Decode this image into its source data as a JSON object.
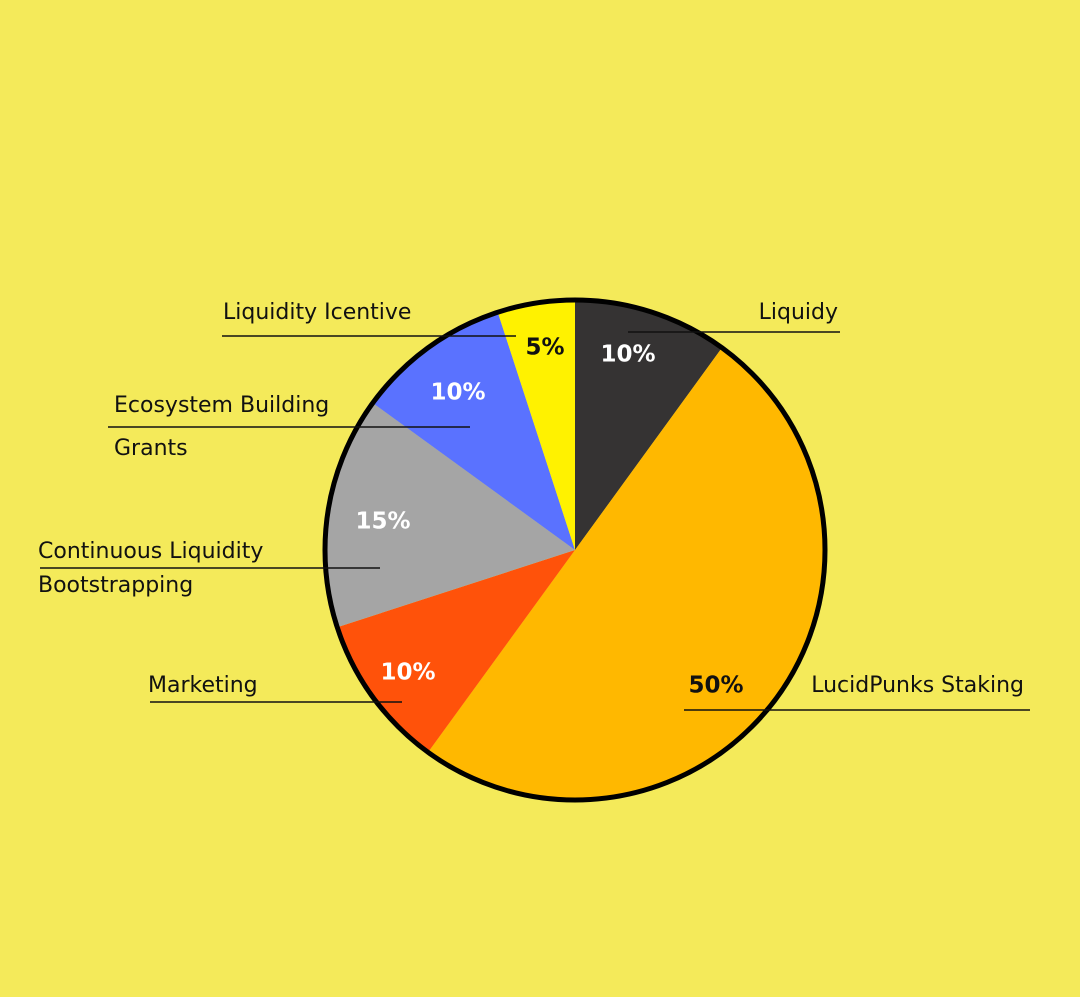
{
  "chart_data": {
    "type": "pie",
    "slices": [
      {
        "label": "Liquidy",
        "label_lines": [
          "Liquidy"
        ],
        "value": 10,
        "value_label": "10%",
        "color": "#353333",
        "text_color": "#FFFFFF"
      },
      {
        "label": "LucidPunks Staking",
        "label_lines": [
          "LucidPunks Staking"
        ],
        "value": 50,
        "value_label": "50%",
        "color": "#FFB800",
        "text_color": "#111111"
      },
      {
        "label": "Marketing",
        "label_lines": [
          "Marketing"
        ],
        "value": 10,
        "value_label": "10%",
        "color": "#FF520A",
        "text_color": "#FFFFFF"
      },
      {
        "label": "Continuous Liquidity Bootstrapping",
        "label_lines": [
          "Continuous Liquidity",
          "Bootstrapping"
        ],
        "value": 15,
        "value_label": "15%",
        "color": "#A5A5A5",
        "text_color": "#FFFFFF"
      },
      {
        "label": "Ecosystem Building Grants",
        "label_lines": [
          "Ecosystem Building",
          "Grants"
        ],
        "value": 10,
        "value_label": "10%",
        "color": "#5A72FF",
        "text_color": "#FFFFFF"
      },
      {
        "label": "Liquidity Icentive",
        "label_lines": [
          "Liquidity Icentive"
        ],
        "value": 5,
        "value_label": "5%",
        "color": "#FFF200",
        "text_color": "#111111"
      }
    ],
    "start": "top",
    "direction": "clockwise",
    "outline_color": "#000000",
    "background": "#F4EA5A"
  }
}
